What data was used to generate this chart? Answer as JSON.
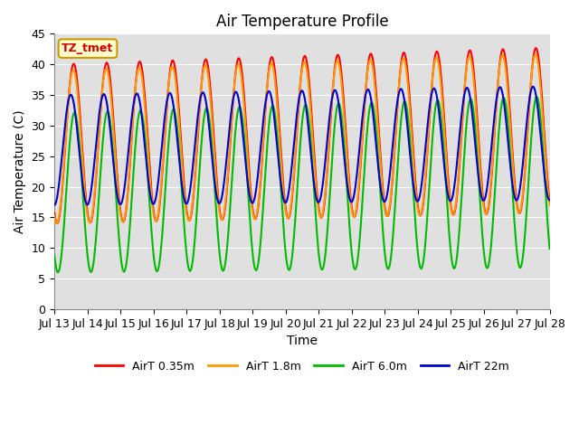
{
  "title": "Air Temperature Profile",
  "xlabel": "Time",
  "ylabel": "Air Temperature (C)",
  "xlim": [
    0,
    15
  ],
  "ylim": [
    0,
    45
  ],
  "yticks": [
    0,
    5,
    10,
    15,
    20,
    25,
    30,
    35,
    40,
    45
  ],
  "xtick_labels": [
    "Jul 13",
    "Jul 14",
    "Jul 15",
    "Jul 16",
    "Jul 17",
    "Jul 18",
    "Jul 19",
    "Jul 20",
    "Jul 21",
    "Jul 22",
    "Jul 23",
    "Jul 24",
    "Jul 25",
    "Jul 26",
    "Jul 27",
    "Jul 28"
  ],
  "series": [
    {
      "label": "AirT 0.35m",
      "color": "#ff0000",
      "linewidth": 1.5
    },
    {
      "label": "AirT 1.8m",
      "color": "#ff9900",
      "linewidth": 1.5
    },
    {
      "label": "AirT 6.0m",
      "color": "#00bb00",
      "linewidth": 1.5
    },
    {
      "label": "AirT 22m",
      "color": "#0000cc",
      "linewidth": 1.5
    }
  ],
  "annotation_text": "TZ_tmet",
  "annotation_color": "#cc0000",
  "annotation_bg": "#ffffcc",
  "annotation_border": "#cc9900",
  "background_color": "#e0e0e0",
  "outer_bg": "#ffffff",
  "grid_color": "#ffffff",
  "title_fontsize": 12,
  "axis_fontsize": 10,
  "tick_fontsize": 9,
  "legend_fontsize": 9
}
